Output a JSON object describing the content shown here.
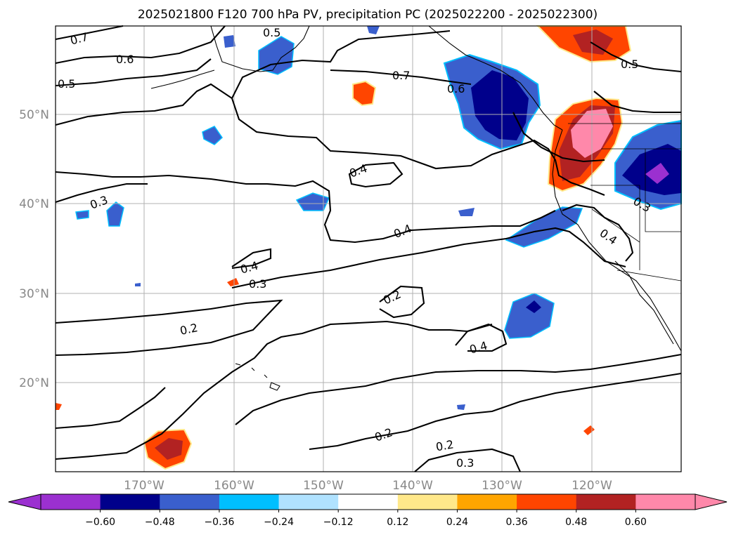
{
  "title": "2025021800 F120 700 hPa PV, precipitation PC (2025022200 - 2025022300)",
  "map": {
    "lat_labels": [
      "50°N",
      "40°N",
      "30°N",
      "20°N"
    ],
    "lon_labels": [
      "170°W",
      "160°W",
      "150°W",
      "140°W",
      "130°W",
      "120°W"
    ],
    "gridlines": true,
    "contour_labels": [
      "0.7",
      "0.5",
      "0.6",
      "0.5",
      "0.7",
      "0.6",
      "0.5",
      "0.4",
      "0.3",
      "0.4",
      "0.3",
      "0.4",
      "0.3",
      "0.4",
      "0.2",
      "0.2",
      "0.4",
      "0.2",
      "0.2",
      "0.3"
    ]
  },
  "colorbar": {
    "ticks": [
      "−0.60",
      "−0.48",
      "−0.36",
      "−0.24",
      "−0.12",
      "0.12",
      "0.24",
      "0.36",
      "0.48",
      "0.60"
    ],
    "colors": {
      "under": "#9b30d0",
      "bins": [
        "#9b30d0",
        "#00008b",
        "#3a5fcd",
        "#00bfff",
        "#b0e2ff",
        "#ffffff",
        "#ffe88a",
        "#ffa500",
        "#ff4500",
        "#b22222",
        "#ff88aa"
      ]
    }
  }
}
